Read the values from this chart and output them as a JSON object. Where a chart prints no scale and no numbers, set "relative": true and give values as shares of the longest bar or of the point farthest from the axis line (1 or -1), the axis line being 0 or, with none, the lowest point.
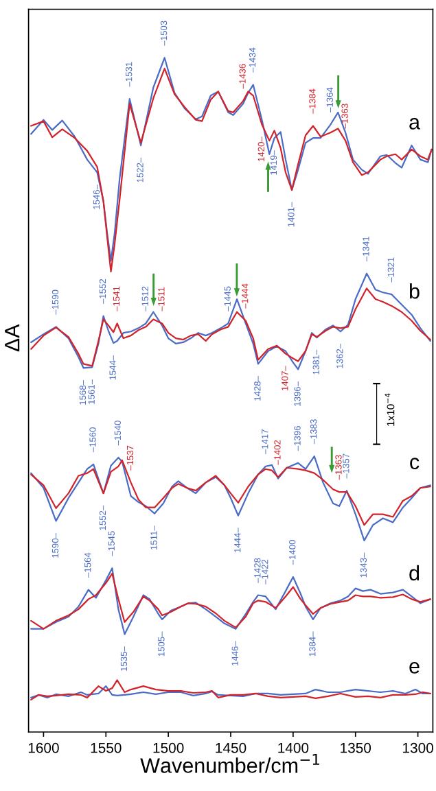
{
  "chart_data": {
    "type": "line",
    "relative": true,
    "xlabel": "Wavenumber/cm$^{−1}$",
    "ylabel": "ΔA",
    "xlim": [
      1612,
      1288
    ],
    "xticks": [
      1600,
      1550,
      1500,
      1450,
      1400,
      1350,
      1300
    ],
    "tick_labels": "x",
    "line_style": "solid",
    "series": [
      {
        "color": "#4a6cc6",
        "x": [
          1610,
          1600,
          1593,
          1585,
          1575,
          1565,
          1557,
          1552,
          1549,
          1546,
          1543,
          1539,
          1531,
          1522,
          1512,
          1503,
          1495,
          1487,
          1478,
          1473,
          1466,
          1460,
          1452,
          1448,
          1440,
          1436,
          1432,
          1425,
          1419,
          1415,
          1410,
          1406,
          1401,
          1396,
          1390,
          1384,
          1378,
          1370,
          1364,
          1358,
          1352,
          1345,
          1340,
          1330,
          1325,
          1318,
          1313,
          1305,
          1298,
          1292,
          1289
        ],
        "values": [
          0.887,
          0.908,
          0.893,
          0.907,
          0.883,
          0.849,
          0.83,
          0.787,
          0.74,
          0.699,
          0.74,
          0.821,
          0.939,
          0.87,
          0.956,
          1.0,
          0.948,
          0.925,
          0.909,
          0.913,
          0.944,
          0.95,
          0.919,
          0.915,
          0.932,
          0.948,
          0.96,
          0.908,
          0.857,
          0.881,
          0.89,
          0.849,
          0.804,
          0.834,
          0.874,
          0.881,
          0.881,
          0.901,
          0.919,
          0.889,
          0.849,
          0.834,
          0.828,
          0.854,
          0.856,
          0.844,
          0.837,
          0.87,
          0.849,
          0.845,
          0.864
        ]
      },
      {
        "color": "#d2232a",
        "x": [
          1610,
          1600,
          1593,
          1585,
          1575,
          1565,
          1557,
          1552,
          1549,
          1546,
          1543,
          1539,
          1531,
          1522,
          1512,
          1503,
          1495,
          1487,
          1478,
          1473,
          1466,
          1460,
          1452,
          1448,
          1440,
          1436,
          1432,
          1425,
          1419,
          1415,
          1410,
          1406,
          1401,
          1396,
          1390,
          1384,
          1378,
          1370,
          1364,
          1358,
          1352,
          1345,
          1340,
          1330,
          1325,
          1318,
          1313,
          1305,
          1298,
          1292,
          1289
        ],
        "values": [
          0.899,
          0.906,
          0.882,
          0.894,
          0.881,
          0.862,
          0.838,
          0.787,
          0.734,
          0.683,
          0.724,
          0.79,
          0.932,
          0.874,
          0.94,
          0.984,
          0.946,
          0.927,
          0.908,
          0.906,
          0.938,
          0.95,
          0.921,
          0.919,
          0.936,
          0.95,
          0.944,
          0.901,
          0.877,
          0.892,
          0.866,
          0.83,
          0.804,
          0.842,
          0.885,
          0.899,
          0.883,
          0.889,
          0.895,
          0.877,
          0.845,
          0.826,
          0.83,
          0.849,
          0.854,
          0.857,
          0.849,
          0.864,
          0.854,
          0.849,
          0.864
        ]
      },
      {
        "color": "#4a6cc6",
        "x": [
          1610,
          1600,
          1590,
          1580,
          1572,
          1568,
          1561,
          1556,
          1552,
          1548,
          1544,
          1541,
          1536,
          1530,
          1524,
          1518,
          1512,
          1505,
          1500,
          1494,
          1488,
          1482,
          1476,
          1470,
          1465,
          1458,
          1452,
          1445,
          1438,
          1432,
          1428,
          1420,
          1413,
          1406,
          1400,
          1396,
          1390,
          1385,
          1381,
          1374,
          1368,
          1362,
          1356,
          1350,
          1341,
          1334,
          1328,
          1321,
          1313,
          1305,
          1298,
          1290
        ],
        "values": [
          0.578,
          0.59,
          0.601,
          0.584,
          0.556,
          0.54,
          0.541,
          0.576,
          0.617,
          0.595,
          0.577,
          0.58,
          0.592,
          0.594,
          0.599,
          0.606,
          0.623,
          0.603,
          0.584,
          0.576,
          0.578,
          0.584,
          0.592,
          0.588,
          0.592,
          0.599,
          0.606,
          0.642,
          0.606,
          0.576,
          0.546,
          0.565,
          0.572,
          0.565,
          0.548,
          0.538,
          0.565,
          0.592,
          0.585,
          0.597,
          0.603,
          0.594,
          0.604,
          0.642,
          0.68,
          0.656,
          0.652,
          0.649,
          0.634,
          0.619,
          0.599,
          0.58
        ]
      },
      {
        "color": "#d2232a",
        "x": [
          1610,
          1600,
          1590,
          1580,
          1572,
          1568,
          1561,
          1556,
          1552,
          1548,
          1544,
          1541,
          1536,
          1530,
          1524,
          1518,
          1512,
          1505,
          1500,
          1494,
          1488,
          1482,
          1476,
          1470,
          1465,
          1458,
          1452,
          1445,
          1438,
          1432,
          1428,
          1420,
          1413,
          1406,
          1400,
          1396,
          1390,
          1385,
          1381,
          1374,
          1368,
          1362,
          1356,
          1350,
          1341,
          1334,
          1328,
          1321,
          1313,
          1305,
          1298,
          1290
        ],
        "values": [
          0.568,
          0.588,
          0.6,
          0.586,
          0.561,
          0.546,
          0.543,
          0.58,
          0.612,
          0.603,
          0.593,
          0.606,
          0.584,
          0.588,
          0.596,
          0.601,
          0.612,
          0.606,
          0.592,
          0.584,
          0.582,
          0.588,
          0.59,
          0.58,
          0.59,
          0.597,
          0.601,
          0.623,
          0.61,
          0.584,
          0.552,
          0.568,
          0.573,
          0.561,
          0.554,
          0.55,
          0.565,
          0.59,
          0.586,
          0.595,
          0.601,
          0.599,
          0.601,
          0.627,
          0.658,
          0.642,
          0.638,
          0.632,
          0.623,
          0.61,
          0.595,
          0.582
        ]
      },
      {
        "color": "#4a6cc6",
        "x": [
          1610,
          1600,
          1590,
          1580,
          1572,
          1565,
          1560,
          1552,
          1546,
          1540,
          1537,
          1530,
          1524,
          1518,
          1511,
          1504,
          1497,
          1492,
          1485,
          1478,
          1470,
          1462,
          1455,
          1450,
          1444,
          1436,
          1428,
          1422,
          1417,
          1412,
          1405,
          1396,
          1390,
          1383,
          1376,
          1368,
          1363,
          1357,
          1350,
          1343,
          1336,
          1328,
          1320,
          1312,
          1305,
          1298,
          1290
        ],
        "values": [
          0.384,
          0.362,
          0.313,
          0.347,
          0.37,
          0.39,
          0.397,
          0.354,
          0.395,
          0.407,
          0.401,
          0.35,
          0.341,
          0.335,
          0.324,
          0.339,
          0.364,
          0.372,
          0.362,
          0.354,
          0.37,
          0.378,
          0.366,
          0.347,
          0.321,
          0.354,
          0.382,
          0.394,
          0.396,
          0.376,
          0.392,
          0.399,
          0.39,
          0.409,
          0.37,
          0.339,
          0.335,
          0.358,
          0.323,
          0.284,
          0.307,
          0.317,
          0.311,
          0.333,
          0.347,
          0.362,
          0.366
        ]
      },
      {
        "color": "#d2232a",
        "x": [
          1610,
          1600,
          1590,
          1580,
          1572,
          1565,
          1560,
          1552,
          1546,
          1540,
          1537,
          1530,
          1524,
          1518,
          1511,
          1504,
          1497,
          1492,
          1485,
          1478,
          1470,
          1462,
          1455,
          1450,
          1444,
          1436,
          1428,
          1422,
          1417,
          1412,
          1405,
          1396,
          1390,
          1383,
          1376,
          1368,
          1363,
          1357,
          1350,
          1343,
          1336,
          1328,
          1320,
          1312,
          1305,
          1298,
          1290
        ],
        "values": [
          0.382,
          0.366,
          0.332,
          0.354,
          0.38,
          0.384,
          0.39,
          0.354,
          0.386,
          0.394,
          0.403,
          0.37,
          0.345,
          0.333,
          0.333,
          0.347,
          0.362,
          0.368,
          0.362,
          0.358,
          0.37,
          0.38,
          0.366,
          0.354,
          0.34,
          0.364,
          0.382,
          0.39,
          0.388,
          0.378,
          0.392,
          0.39,
          0.388,
          0.384,
          0.374,
          0.36,
          0.356,
          0.356,
          0.335,
          0.307,
          0.323,
          0.323,
          0.319,
          0.343,
          0.35,
          0.362,
          0.364
        ]
      },
      {
        "color": "#4a6cc6",
        "x": [
          1610,
          1600,
          1590,
          1580,
          1572,
          1564,
          1558,
          1550,
          1545,
          1540,
          1535,
          1528,
          1520,
          1515,
          1508,
          1505,
          1498,
          1490,
          1484,
          1478,
          1470,
          1462,
          1455,
          1446,
          1438,
          1432,
          1428,
          1422,
          1414,
          1406,
          1400,
          1394,
          1390,
          1384,
          1378,
          1370,
          1362,
          1356,
          1350,
          1344,
          1338,
          1330,
          1320,
          1312,
          1305,
          1298,
          1290
        ],
        "values": [
          0.153,
          0.153,
          0.163,
          0.171,
          0.186,
          0.211,
          0.199,
          0.225,
          0.243,
          0.182,
          0.145,
          0.171,
          0.203,
          0.197,
          0.175,
          0.167,
          0.18,
          0.186,
          0.191,
          0.192,
          0.182,
          0.171,
          0.161,
          0.153,
          0.175,
          0.193,
          0.203,
          0.201,
          0.182,
          0.209,
          0.23,
          0.205,
          0.186,
          0.167,
          0.184,
          0.191,
          0.195,
          0.201,
          0.213,
          0.209,
          0.211,
          0.205,
          0.207,
          0.211,
          0.201,
          0.191,
          0.197
        ]
      },
      {
        "color": "#d2232a",
        "x": [
          1610,
          1600,
          1590,
          1580,
          1572,
          1564,
          1558,
          1550,
          1545,
          1540,
          1535,
          1528,
          1520,
          1515,
          1508,
          1505,
          1498,
          1490,
          1484,
          1478,
          1470,
          1462,
          1455,
          1446,
          1438,
          1432,
          1428,
          1422,
          1414,
          1406,
          1400,
          1394,
          1390,
          1384,
          1378,
          1370,
          1362,
          1356,
          1350,
          1344,
          1338,
          1330,
          1320,
          1312,
          1305,
          1298,
          1290
        ],
        "values": [
          0.165,
          0.153,
          0.165,
          0.173,
          0.182,
          0.197,
          0.203,
          0.221,
          0.235,
          0.197,
          0.163,
          0.178,
          0.201,
          0.195,
          0.182,
          0.173,
          0.178,
          0.186,
          0.191,
          0.19,
          0.186,
          0.176,
          0.165,
          0.155,
          0.171,
          0.191,
          0.195,
          0.193,
          0.184,
          0.201,
          0.215,
          0.197,
          0.188,
          0.175,
          0.184,
          0.19,
          0.193,
          0.195,
          0.203,
          0.201,
          0.201,
          0.199,
          0.2,
          0.204,
          0.197,
          0.193,
          0.197
        ]
      },
      {
        "color": "#4a6cc6",
        "x": [
          1610,
          1604,
          1597,
          1590,
          1580,
          1570,
          1565,
          1556,
          1550,
          1545,
          1541,
          1535,
          1530,
          1520,
          1510,
          1500,
          1490,
          1480,
          1470,
          1465,
          1460,
          1450,
          1440,
          1430,
          1420,
          1410,
          1400,
          1390,
          1382,
          1372,
          1362,
          1350,
          1340,
          1330,
          1320,
          1310,
          1302,
          1296,
          1290
        ],
        "values": [
          0.051,
          0.055,
          0.051,
          0.056,
          0.053,
          0.059,
          0.055,
          0.057,
          0.068,
          0.055,
          0.054,
          0.055,
          0.056,
          0.059,
          0.056,
          0.059,
          0.059,
          0.054,
          0.057,
          0.06,
          0.055,
          0.054,
          0.053,
          0.057,
          0.057,
          0.055,
          0.056,
          0.057,
          0.063,
          0.059,
          0.059,
          0.063,
          0.061,
          0.059,
          0.061,
          0.057,
          0.063,
          0.057,
          0.057
        ]
      },
      {
        "color": "#d2232a",
        "x": [
          1610,
          1604,
          1597,
          1590,
          1580,
          1570,
          1565,
          1556,
          1550,
          1545,
          1541,
          1535,
          1530,
          1520,
          1510,
          1500,
          1490,
          1480,
          1470,
          1465,
          1460,
          1450,
          1440,
          1430,
          1420,
          1410,
          1400,
          1390,
          1382,
          1372,
          1362,
          1350,
          1340,
          1330,
          1320,
          1310,
          1302,
          1296,
          1290
        ],
        "values": [
          0.048,
          0.055,
          0.053,
          0.054,
          0.056,
          0.055,
          0.051,
          0.068,
          0.061,
          0.065,
          0.077,
          0.059,
          0.063,
          0.068,
          0.063,
          0.061,
          0.061,
          0.058,
          0.059,
          0.061,
          0.051,
          0.055,
          0.055,
          0.057,
          0.053,
          0.051,
          0.052,
          0.053,
          0.05,
          0.053,
          0.057,
          0.052,
          0.053,
          0.051,
          0.055,
          0.055,
          0.056,
          0.059,
          0.057
        ]
      }
    ],
    "annotations": [
      "a",
      "b",
      "c",
      "d",
      "e",
      "1x10$^{−4}$",
      {
        "text": "–1503",
        "x": 1503,
        "y": 1.0
      },
      {
        "text": "–1531",
        "x": 1531,
        "y": 0.939
      },
      {
        "text": "1522–",
        "x": 1522,
        "y": 0.87
      },
      {
        "text": "–1436",
        "x": 1440,
        "y": 0.936
      },
      {
        "text": "–1434",
        "x": 1432,
        "y": 0.96
      },
      {
        "text": "1420–",
        "x": 1425,
        "y": 0.901
      },
      {
        "text": "1419–",
        "x": 1415,
        "y": 0.881
      },
      {
        "text": "–1384",
        "x": 1384,
        "y": 0.899
      },
      {
        "text": "–1364",
        "x": 1370,
        "y": 0.901
      },
      {
        "text": "–1363",
        "x": 1358,
        "y": 0.877
      },
      {
        "text": "1401–",
        "x": 1401,
        "y": 0.804
      },
      {
        "text": "1546–",
        "x": 1557,
        "y": 0.83
      },
      {
        "text": "–1590",
        "x": 1590,
        "y": 0.601
      },
      {
        "text": "–1552",
        "x": 1552,
        "y": 0.617
      },
      {
        "text": "–1541",
        "x": 1541,
        "y": 0.606
      },
      {
        "text": "–1512",
        "x": 1518,
        "y": 0.606
      },
      {
        "text": "–1511",
        "x": 1505,
        "y": 0.606
      },
      {
        "text": "–1445",
        "x": 1452,
        "y": 0.606
      },
      {
        "text": "–1444",
        "x": 1438,
        "y": 0.61
      },
      {
        "text": "–1341",
        "x": 1341,
        "y": 0.68
      },
      {
        "text": "–1321",
        "x": 1321,
        "y": 0.649
      },
      {
        "text": "1568–",
        "x": 1568,
        "y": 0.54
      },
      {
        "text": "1561–",
        "x": 1561,
        "y": 0.541
      },
      {
        "text": "1544–",
        "x": 1544,
        "y": 0.577
      },
      {
        "text": "1428–",
        "x": 1428,
        "y": 0.546
      },
      {
        "text": "1407–",
        "x": 1406,
        "y": 0.561
      },
      {
        "text": "1396–",
        "x": 1396,
        "y": 0.538
      },
      {
        "text": "1381–",
        "x": 1381,
        "y": 0.585
      },
      {
        "text": "1362–",
        "x": 1362,
        "y": 0.594
      },
      {
        "text": "–1560",
        "x": 1560,
        "y": 0.397
      },
      {
        "text": "–1540",
        "x": 1540,
        "y": 0.407
      },
      {
        "text": "–1537",
        "x": 1530,
        "y": 0.37
      },
      {
        "text": "–1417",
        "x": 1422,
        "y": 0.394
      },
      {
        "text": "–1402",
        "x": 1412,
        "y": 0.378
      },
      {
        "text": "–1396",
        "x": 1396,
        "y": 0.399
      },
      {
        "text": "–1383",
        "x": 1383,
        "y": 0.409
      },
      {
        "text": "–1363",
        "x": 1363,
        "y": 0.356
      },
      {
        "text": "–1357",
        "x": 1357,
        "y": 0.358
      },
      {
        "text": "1590–",
        "x": 1590,
        "y": 0.313
      },
      {
        "text": "1552–",
        "x": 1552,
        "y": 0.354
      },
      {
        "text": "1511–",
        "x": 1511,
        "y": 0.324
      },
      {
        "text": "1444–",
        "x": 1444,
        "y": 0.321
      },
      {
        "text": "1343–",
        "x": 1343,
        "y": 0.284
      },
      {
        "text": "–1564",
        "x": 1564,
        "y": 0.211
      },
      {
        "text": "–1545",
        "x": 1545,
        "y": 0.243
      },
      {
        "text": "–1428",
        "x": 1428,
        "y": 0.203
      },
      {
        "text": "–1422",
        "x": 1422,
        "y": 0.201
      },
      {
        "text": "–1400",
        "x": 1400,
        "y": 0.23
      },
      {
        "text": "1535–",
        "x": 1535,
        "y": 0.145
      },
      {
        "text": "1505–",
        "x": 1505,
        "y": 0.167
      },
      {
        "text": "1446–",
        "x": 1446,
        "y": 0.153
      },
      {
        "text": "1384–",
        "x": 1384,
        "y": 0.167
      }
    ]
  }
}
